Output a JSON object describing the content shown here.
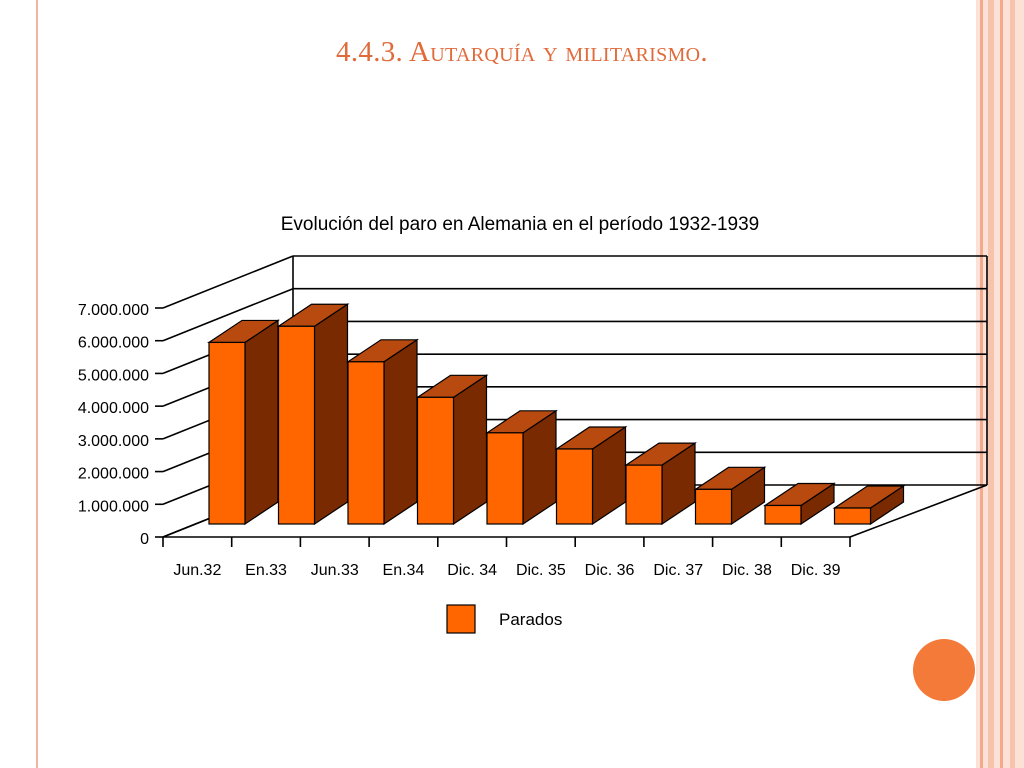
{
  "slide": {
    "title": "4.4.3. Autarquía y militarismo."
  },
  "colors": {
    "accent": "#f47a3a",
    "title": "#e06a3a",
    "bar_front": "#ff6600",
    "bar_side": "#7a2a00",
    "bar_top": "#b84a10"
  },
  "chart_data": {
    "type": "bar",
    "title": "Evolución del paro en Alemania en el período 1932-1939",
    "xlabel": "",
    "ylabel": "",
    "categories": [
      "Jun.32",
      "En.33",
      "Jun.33",
      "En.34",
      "Dic. 34",
      "Dic. 35",
      "Dic. 36",
      "Dic. 37",
      "Dic. 38",
      "Dic. 39"
    ],
    "series": [
      {
        "name": "Parados",
        "values": [
          5500000,
          6000000,
          4900000,
          3800000,
          2700000,
          2200000,
          1700000,
          950000,
          450000,
          0
        ]
      }
    ],
    "ylim": [
      0,
      7000000
    ],
    "yticks": [
      0,
      1000000,
      2000000,
      3000000,
      4000000,
      5000000,
      6000000,
      7000000
    ],
    "ytick_labels": [
      "0",
      "1.000.000",
      "2.000.000",
      "3.000.000",
      "4.000.000",
      "5.000.000",
      "6.000.000",
      "7.000.000"
    ],
    "grid": true,
    "legend": "bottom-center",
    "style": "3d-bar"
  }
}
